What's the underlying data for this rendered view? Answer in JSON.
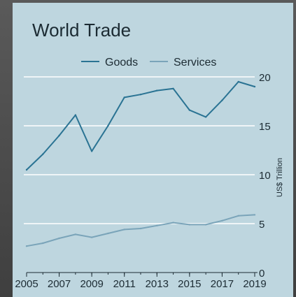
{
  "chart_data": {
    "type": "line",
    "title": "World Trade",
    "ylabel": "US$ Trillion",
    "xlabel": "",
    "x": [
      2005,
      2006,
      2007,
      2008,
      2009,
      2010,
      2011,
      2012,
      2013,
      2014,
      2015,
      2016,
      2017,
      2018,
      2019
    ],
    "xticks": [
      "2005",
      "2007",
      "2009",
      "2011",
      "2013",
      "2015",
      "2017",
      "2019"
    ],
    "yticks": [
      "0",
      "5",
      "10",
      "15",
      "20"
    ],
    "xlim": [
      2005,
      2019
    ],
    "ylim": [
      0,
      20
    ],
    "grid": true,
    "legend_position": "top",
    "series": [
      {
        "name": "Goods",
        "color": "#2a7393",
        "values": [
          10.5,
          12.1,
          14.0,
          16.1,
          12.4,
          15.0,
          17.9,
          18.2,
          18.6,
          18.8,
          16.6,
          15.9,
          17.6,
          19.5,
          19.0
        ]
      },
      {
        "name": "Services",
        "color": "#7aa4b9",
        "values": [
          2.7,
          3.0,
          3.5,
          3.9,
          3.6,
          4.0,
          4.4,
          4.5,
          4.8,
          5.1,
          4.9,
          4.9,
          5.3,
          5.8,
          5.9
        ]
      }
    ],
    "colors": {
      "background": "#bed6df",
      "grid": "#ffffff",
      "axis": "#1c2b33"
    }
  }
}
